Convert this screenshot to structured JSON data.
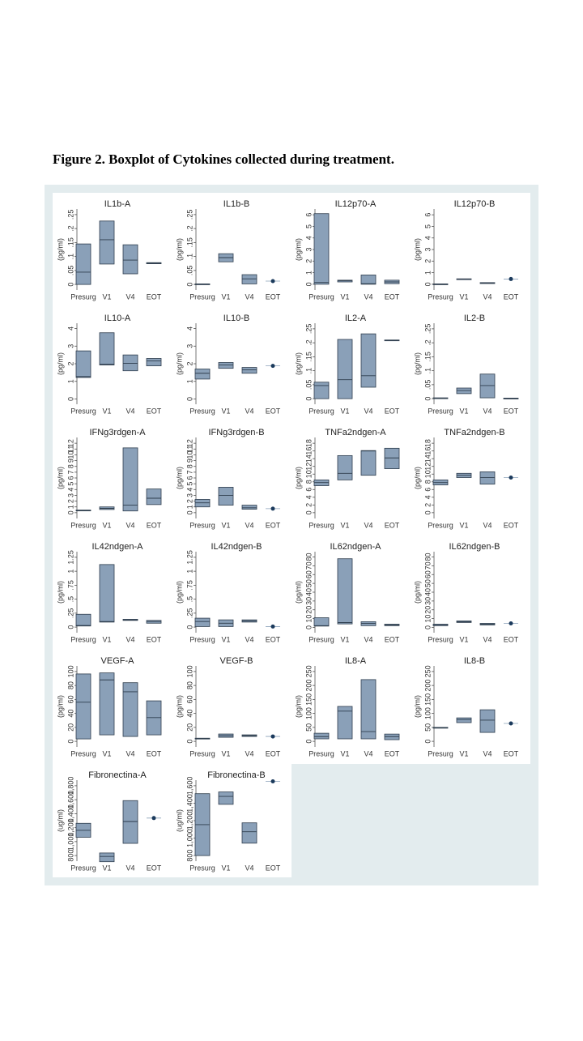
{
  "caption": "Figure 2. Boxplot of Cytokines collected during treatment.",
  "chart_data": [
    {
      "type": "box",
      "title": "IL1b-A",
      "ylabel": "(pg/ml)",
      "categories": [
        "Presurg",
        "V1",
        "V4",
        "EOT"
      ],
      "boxes": [
        {
          "q1": 0,
          "median": 0.044,
          "q3": 0.145
        },
        {
          "q1": 0.073,
          "median": 0.16,
          "q3": 0.227
        },
        {
          "q1": 0.038,
          "median": 0.087,
          "q3": 0.142
        },
        {
          "q1": 0.074,
          "median": 0.076,
          "q3": 0.078
        }
      ],
      "ylim": [
        -0.02,
        0.27
      ],
      "yticks": [
        0,
        {
          "value": 0.05,
          "label": ".05"
        },
        {
          "value": 0.1,
          "label": ".1"
        },
        {
          "value": 0.15,
          "label": ".15"
        },
        {
          "value": 0.2,
          "label": ".2"
        },
        {
          "value": 0.25,
          "label": ".25"
        }
      ]
    },
    {
      "type": "box",
      "title": "IL1b-B",
      "ylabel": "(pg/ml)",
      "categories": [
        "Presurg",
        "V1",
        "V4",
        "EOT"
      ],
      "boxes": [
        {
          "q1": 0,
          "median": 0.001,
          "q3": 0.002
        },
        {
          "q1": 0.081,
          "median": 0.096,
          "q3": 0.11
        },
        {
          "q1": 0.002,
          "median": 0.02,
          "q3": 0.035
        },
        {
          "value": 0.012
        }
      ],
      "ylim": [
        -0.02,
        0.27
      ],
      "yticks": [
        0,
        {
          "value": 0.05,
          "label": ".05"
        },
        {
          "value": 0.1,
          "label": ".1"
        },
        {
          "value": 0.15,
          "label": ".15"
        },
        {
          "value": 0.2,
          "label": ".2"
        },
        {
          "value": 0.25,
          "label": ".25"
        }
      ]
    },
    {
      "type": "box",
      "title": "IL12p70-A",
      "ylabel": "(pg/ml)",
      "categories": [
        "Presurg",
        "V1",
        "V4",
        "EOT"
      ],
      "boxes": [
        {
          "q1": 0,
          "median": 0.15,
          "q3": 6.1
        },
        {
          "q1": 0.2,
          "median": 0.3,
          "q3": 0.35
        },
        {
          "q1": 0,
          "median": 0.05,
          "q3": 0.8
        },
        {
          "q1": 0.05,
          "median": 0.2,
          "q3": 0.35
        }
      ],
      "ylim": [
        -0.5,
        6.5
      ],
      "yticks": [
        0,
        1,
        2,
        3,
        4,
        5,
        6
      ]
    },
    {
      "type": "box",
      "title": "IL12p70-B",
      "ylabel": "(pg/ml)",
      "categories": [
        "Presurg",
        "V1",
        "V4",
        "EOT"
      ],
      "boxes": [
        {
          "q1": 0.01,
          "median": 0.02,
          "q3": 0.03
        },
        {
          "q1": 0.43,
          "median": 0.45,
          "q3": 0.47
        },
        {
          "q1": 0.06,
          "median": 0.1,
          "q3": 0.14
        },
        {
          "value": 0.45
        }
      ],
      "ylim": [
        -0.5,
        6.5
      ],
      "yticks": [
        0,
        1,
        2,
        3,
        4,
        5,
        6
      ]
    },
    {
      "type": "box",
      "title": "IL10-A",
      "ylabel": "(pg/ml)",
      "categories": [
        "Presurg",
        "V1",
        "V4",
        "EOT"
      ],
      "boxes": [
        {
          "q1": 1.22,
          "median": 1.27,
          "q3": 2.73
        },
        {
          "q1": 1.93,
          "median": 1.98,
          "q3": 3.76
        },
        {
          "q1": 1.6,
          "median": 2.02,
          "q3": 2.5
        },
        {
          "q1": 1.88,
          "median": 2.16,
          "q3": 2.3
        }
      ],
      "ylim": [
        -0.3,
        4.3
      ],
      "yticks": [
        0,
        1,
        2,
        3,
        4
      ]
    },
    {
      "type": "box",
      "title": "IL10-B",
      "ylabel": "(pg/ml)",
      "categories": [
        "Presurg",
        "V1",
        "V4",
        "EOT"
      ],
      "boxes": [
        {
          "q1": 1.13,
          "median": 1.46,
          "q3": 1.7
        },
        {
          "q1": 1.74,
          "median": 1.93,
          "q3": 2.07
        },
        {
          "q1": 1.46,
          "median": 1.65,
          "q3": 1.79
        },
        {
          "value": 1.88
        }
      ],
      "ylim": [
        -0.3,
        4.3
      ],
      "yticks": [
        0,
        1,
        2,
        3,
        4
      ]
    },
    {
      "type": "box",
      "title": "IL2-A",
      "ylabel": "(pg/ml)",
      "categories": [
        "Presurg",
        "V1",
        "V4",
        "EOT"
      ],
      "boxes": [
        {
          "q1": 0,
          "median": 0.047,
          "q3": 0.059
        },
        {
          "q1": 0,
          "median": 0.068,
          "q3": 0.212
        },
        {
          "q1": 0.041,
          "median": 0.082,
          "q3": 0.232
        },
        {
          "q1": 0.208,
          "median": 0.209,
          "q3": 0.21
        }
      ],
      "ylim": [
        -0.02,
        0.27
      ],
      "yticks": [
        0,
        {
          "value": 0.05,
          "label": ".05"
        },
        {
          "value": 0.1,
          "label": ".1"
        },
        {
          "value": 0.15,
          "label": ".15"
        },
        {
          "value": 0.2,
          "label": ".2"
        },
        {
          "value": 0.25,
          "label": ".25"
        }
      ]
    },
    {
      "type": "box",
      "title": "IL2-B",
      "ylabel": "(pg/ml)",
      "categories": [
        "Presurg",
        "V1",
        "V4",
        "EOT"
      ],
      "boxes": [
        {
          "q1": 0.001,
          "median": 0.002,
          "q3": 0.003
        },
        {
          "q1": 0.018,
          "median": 0.029,
          "q3": 0.038
        },
        {
          "q1": 0.003,
          "median": 0.047,
          "q3": 0.088
        },
        {
          "q1": 0,
          "median": 0.001,
          "q3": 0.002
        }
      ],
      "ylim": [
        -0.02,
        0.27
      ],
      "yticks": [
        0,
        {
          "value": 0.05,
          "label": ".05"
        },
        {
          "value": 0.1,
          "label": ".1"
        },
        {
          "value": 0.15,
          "label": ".15"
        },
        {
          "value": 0.2,
          "label": ".2"
        },
        {
          "value": 0.25,
          "label": ".25"
        }
      ]
    },
    {
      "type": "box",
      "title": "IFNg3rdgen-A",
      "ylabel": "(pg/ml)",
      "categories": [
        "Presurg",
        "V1",
        "V4",
        "EOT"
      ],
      "boxes": [
        {
          "q1": 0.35,
          "median": 0.4,
          "q3": 0.45
        },
        {
          "q1": 0.55,
          "median": 0.75,
          "q3": 1.0
        },
        {
          "q1": 0.3,
          "median": 1.3,
          "q3": 11.2
        },
        {
          "q1": 1.4,
          "median": 2.5,
          "q3": 4.1
        }
      ],
      "ylim": [
        -1,
        13
      ],
      "yticks": [
        0,
        1,
        2,
        3,
        4,
        5,
        6,
        7,
        8,
        9,
        10,
        11,
        12
      ]
    },
    {
      "type": "box",
      "title": "IFNg3rdgen-B",
      "ylabel": "(pg/ml)",
      "categories": [
        "Presurg",
        "V1",
        "V4",
        "EOT"
      ],
      "boxes": [
        {
          "q1": 1.0,
          "median": 1.7,
          "q3": 2.3
        },
        {
          "q1": 1.3,
          "median": 3.0,
          "q3": 4.4
        },
        {
          "q1": 0.6,
          "median": 0.85,
          "q3": 1.3
        },
        {
          "value": 0.7
        }
      ],
      "ylim": [
        -1,
        13
      ],
      "yticks": [
        0,
        1,
        2,
        3,
        4,
        5,
        6,
        7,
        8,
        9,
        10,
        11,
        12
      ]
    },
    {
      "type": "box",
      "title": "TNFa2ndgen-A",
      "ylabel": "(pg/ml)",
      "categories": [
        "Presurg",
        "V1",
        "V4",
        "EOT"
      ],
      "boxes": [
        {
          "q1": 7.0,
          "median": 7.8,
          "q3": 8.5
        },
        {
          "q1": 8.5,
          "median": 10.2,
          "q3": 14.8
        },
        {
          "q1": 9.7,
          "median": 16.0,
          "q3": 16.1
        },
        {
          "q1": 11.4,
          "median": 14.2,
          "q3": 16.7
        }
      ],
      "ylim": [
        -1.5,
        19.5
      ],
      "yticks": [
        0,
        2,
        4,
        6,
        8,
        10,
        12,
        14,
        16,
        18
      ]
    },
    {
      "type": "box",
      "title": "TNFa2ndgen-B",
      "ylabel": "(pg/ml)",
      "categories": [
        "Presurg",
        "V1",
        "V4",
        "EOT"
      ],
      "boxes": [
        {
          "q1": 7.2,
          "median": 7.8,
          "q3": 8.5
        },
        {
          "q1": 9.1,
          "median": 9.7,
          "q3": 10.2
        },
        {
          "q1": 7.4,
          "median": 9.1,
          "q3": 10.6
        },
        {
          "value": 9.1
        }
      ],
      "ylim": [
        -1.5,
        19.5
      ],
      "yticks": [
        0,
        2,
        4,
        6,
        8,
        10,
        12,
        14,
        16,
        18
      ]
    },
    {
      "type": "box",
      "title": "IL42ndgen-A",
      "ylabel": "(pg/ml)",
      "categories": [
        "Presurg",
        "V1",
        "V4",
        "EOT"
      ],
      "boxes": [
        {
          "q1": 0.02,
          "median": 0.03,
          "q3": 0.23
        },
        {
          "q1": 0.09,
          "median": 0.1,
          "q3": 1.12
        },
        {
          "q1": 0.12,
          "median": 0.13,
          "q3": 0.14
        },
        {
          "q1": 0.07,
          "median": 0.1,
          "q3": 0.12
        }
      ],
      "ylim": [
        -0.1,
        1.35
      ],
      "yticks": [
        0,
        {
          "value": 0.25,
          "label": ".25"
        },
        {
          "value": 0.5,
          "label": ".5"
        },
        {
          "value": 0.75,
          "label": ".75"
        },
        1,
        {
          "value": 1.25,
          "label": "1.25"
        }
      ]
    },
    {
      "type": "box",
      "title": "IL42ndgen-B",
      "ylabel": "(pg/ml)",
      "categories": [
        "Presurg",
        "V1",
        "V4",
        "EOT"
      ],
      "boxes": [
        {
          "q1": 0.01,
          "median": 0.1,
          "q3": 0.16
        },
        {
          "q1": 0.01,
          "median": 0.07,
          "q3": 0.13
        },
        {
          "q1": 0.09,
          "median": 0.11,
          "q3": 0.13
        },
        {
          "value": 0.01
        }
      ],
      "ylim": [
        -0.1,
        1.35
      ],
      "yticks": [
        0,
        {
          "value": 0.25,
          "label": ".25"
        },
        {
          "value": 0.5,
          "label": ".5"
        },
        {
          "value": 0.75,
          "label": ".75"
        },
        1,
        {
          "value": 1.25,
          "label": "1.25"
        }
      ]
    },
    {
      "type": "box",
      "title": "IL62ndgen-A",
      "ylabel": "(pg/ml)",
      "categories": [
        "Presurg",
        "V1",
        "V4",
        "EOT"
      ],
      "boxes": [
        {
          "q1": 1.5,
          "median": 2,
          "q3": 11
        },
        {
          "q1": 4,
          "median": 5.5,
          "q3": 78
        },
        {
          "q1": 2,
          "median": 4.6,
          "q3": 6.5
        },
        {
          "q1": 2,
          "median": 2.8,
          "q3": 3.7
        }
      ],
      "ylim": [
        -6,
        86
      ],
      "yticks": [
        0,
        10,
        20,
        30,
        40,
        50,
        60,
        70,
        80
      ]
    },
    {
      "type": "box",
      "title": "IL62ndgen-B",
      "ylabel": "(pg/ml)",
      "categories": [
        "Presurg",
        "V1",
        "V4",
        "EOT"
      ],
      "boxes": [
        {
          "q1": 2,
          "median": 2.5,
          "q3": 3.7
        },
        {
          "q1": 5.6,
          "median": 6.5,
          "q3": 7.4
        },
        {
          "q1": 2.8,
          "median": 3.7,
          "q3": 4.6
        },
        {
          "value": 4.6
        }
      ],
      "ylim": [
        -6,
        86
      ],
      "yticks": [
        0,
        10,
        20,
        30,
        40,
        50,
        60,
        70,
        80
      ]
    },
    {
      "type": "box",
      "title": "VEGF-A",
      "ylabel": "(pg/ml)",
      "categories": [
        "Presurg",
        "V1",
        "V4",
        "EOT"
      ],
      "boxes": [
        {
          "q1": 3.5,
          "median": 56,
          "q3": 96.5
        },
        {
          "q1": 9.3,
          "median": 88,
          "q3": 98
        },
        {
          "q1": 7,
          "median": 71,
          "q3": 84
        },
        {
          "q1": 9.3,
          "median": 34,
          "q3": 58
        }
      ],
      "ylim": [
        -8,
        108
      ],
      "yticks": [
        0,
        20,
        40,
        60,
        80,
        100
      ]
    },
    {
      "type": "box",
      "title": "VEGF-B",
      "ylabel": "(pg/ml)",
      "categories": [
        "Presurg",
        "V1",
        "V4",
        "EOT"
      ],
      "boxes": [
        {
          "q1": 3.5,
          "median": 4,
          "q3": 4.5
        },
        {
          "q1": 5.8,
          "median": 8.1,
          "q3": 10.5
        },
        {
          "q1": 7,
          "median": 8.1,
          "q3": 9.3
        },
        {
          "value": 7
        }
      ],
      "ylim": [
        -8,
        108
      ],
      "yticks": [
        0,
        20,
        40,
        60,
        80,
        100
      ]
    },
    {
      "type": "box",
      "title": "IL8-A",
      "ylabel": "(pg/ml)",
      "categories": [
        "Presurg",
        "V1",
        "V4",
        "EOT"
      ],
      "boxes": [
        {
          "q1": 9,
          "median": 17,
          "q3": 29
        },
        {
          "q1": 9,
          "median": 108,
          "q3": 125
        },
        {
          "q1": 9,
          "median": 35,
          "q3": 221
        },
        {
          "q1": 6,
          "median": 17,
          "q3": 26
        }
      ],
      "ylim": [
        -20,
        270
      ],
      "yticks": [
        0,
        50,
        100,
        150,
        200,
        250
      ]
    },
    {
      "type": "box",
      "title": "IL8-B",
      "ylabel": "(pg/ml)",
      "categories": [
        "Presurg",
        "V1",
        "V4",
        "EOT"
      ],
      "boxes": [
        {
          "q1": 48,
          "median": 49,
          "q3": 50
        },
        {
          "q1": 67,
          "median": 78,
          "q3": 84
        },
        {
          "q1": 32,
          "median": 76,
          "q3": 113
        },
        {
          "value": 64
        }
      ],
      "ylim": [
        -20,
        270
      ],
      "yticks": [
        0,
        50,
        100,
        150,
        200,
        250
      ]
    },
    {
      "type": "box",
      "title": "Fibronectina-A",
      "ylabel": "(ug/ml)",
      "categories": [
        "Presurg",
        "V1",
        "V4",
        "EOT"
      ],
      "boxes": [
        {
          "q1": 1062,
          "median": 1162,
          "q3": 1262
        },
        {
          "q1": 712,
          "median": 787,
          "q3": 837
        },
        {
          "q1": 975,
          "median": 1287,
          "q3": 1587
        },
        {
          "value": 1337
        }
      ],
      "ylim": [
        720,
        1880
      ],
      "yticks": [
        800,
        {
          "value": 1000,
          "label": "1,000"
        },
        {
          "value": 1200,
          "label": "1,200"
        },
        {
          "value": 1400,
          "label": "1,400"
        },
        {
          "value": 1600,
          "label": "1,600"
        },
        {
          "value": 1800,
          "label": "1,800"
        }
      ]
    },
    {
      "type": "box",
      "title": "Fibronectina-B",
      "ylabel": "(ug/ml)",
      "categories": [
        "Presurg",
        "V1",
        "V4",
        "EOT"
      ],
      "boxes": [
        {
          "q1": 800,
          "median": 1154,
          "q3": 1509
        },
        {
          "q1": 1387,
          "median": 1478,
          "q3": 1529
        },
        {
          "q1": 942,
          "median": 1073,
          "q3": 1175
        },
        {
          "value": 1650
        }
      ],
      "ylim": [
        736,
        1664
      ],
      "yticks": [
        800,
        {
          "value": 1000,
          "label": "1,000"
        },
        {
          "value": 1200,
          "label": "1,200"
        },
        {
          "value": 1400,
          "label": "1,400"
        },
        {
          "value": 1600,
          "label": "1,600"
        }
      ]
    }
  ]
}
